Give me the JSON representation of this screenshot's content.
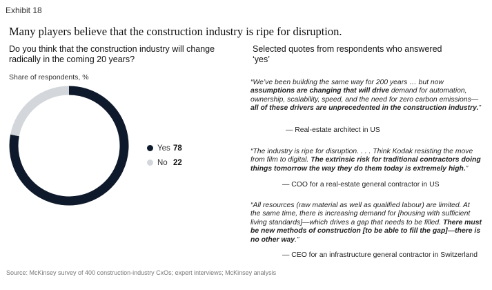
{
  "exhibit_label": "Exhibit 18",
  "title": "Many players believe that the construction industry is ripe for disruption.",
  "left_heading": "Do you think that the construction industry will change radically in the coming 20 years?",
  "right_heading": "Selected quotes from respondents who answered ‘yes’",
  "share_label": "Share of respondents, %",
  "colors": {
    "yes": "#0e1a2b",
    "no": "#d3d6da"
  },
  "chart_data": {
    "type": "pie",
    "variant": "donut",
    "title": "Do you think that the construction industry will change radically in the coming 20 years?",
    "unit": "Share of respondents, %",
    "categories": [
      "Yes",
      "No"
    ],
    "values": [
      78,
      22
    ],
    "legend_position": "right"
  },
  "quotes": [
    {
      "segments": [
        {
          "text": "“We’ve been building the same way for 200 years … but now ",
          "bold": false
        },
        {
          "text": "assumptions are changing that will drive",
          "bold": true
        },
        {
          "text": " demand for automation, ownership, scalability, speed, and the need for zero carbon emissions—",
          "bold": false
        },
        {
          "text": "all of these drivers are unprecedented in the construction industry.",
          "bold": true
        },
        {
          "text": "”",
          "bold": false
        }
      ],
      "attribution": "— Real-estate architect in US"
    },
    {
      "segments": [
        {
          "text": "“The industry is ripe for disruption. . . . Think Kodak resisting the move from film to digital. ",
          "bold": false
        },
        {
          "text": "The extrinsic risk for traditional contractors doing things tomorrow the way they do them today is extremely high.",
          "bold": true
        },
        {
          "text": "”",
          "bold": false
        }
      ],
      "attribution": "— COO for a real-estate general contractor in US"
    },
    {
      "segments": [
        {
          "text": "“All resources (raw material as well as qualified labour) are limited. At the same time, there is increasing demand for [housing with sufficient living standards]—which drives a gap that needs to be filled. ",
          "bold": false
        },
        {
          "text": "There must be new methods of construction [to be able to fill the gap]—there is no other way",
          "bold": true
        },
        {
          "text": ".”",
          "bold": false
        }
      ],
      "attribution": "— CEO for an infrastructure general contractor in Switzerland"
    }
  ],
  "source": "Source: McKinsey survey of 400 construction-industry CxOs; expert interviews; McKinsey analysis"
}
